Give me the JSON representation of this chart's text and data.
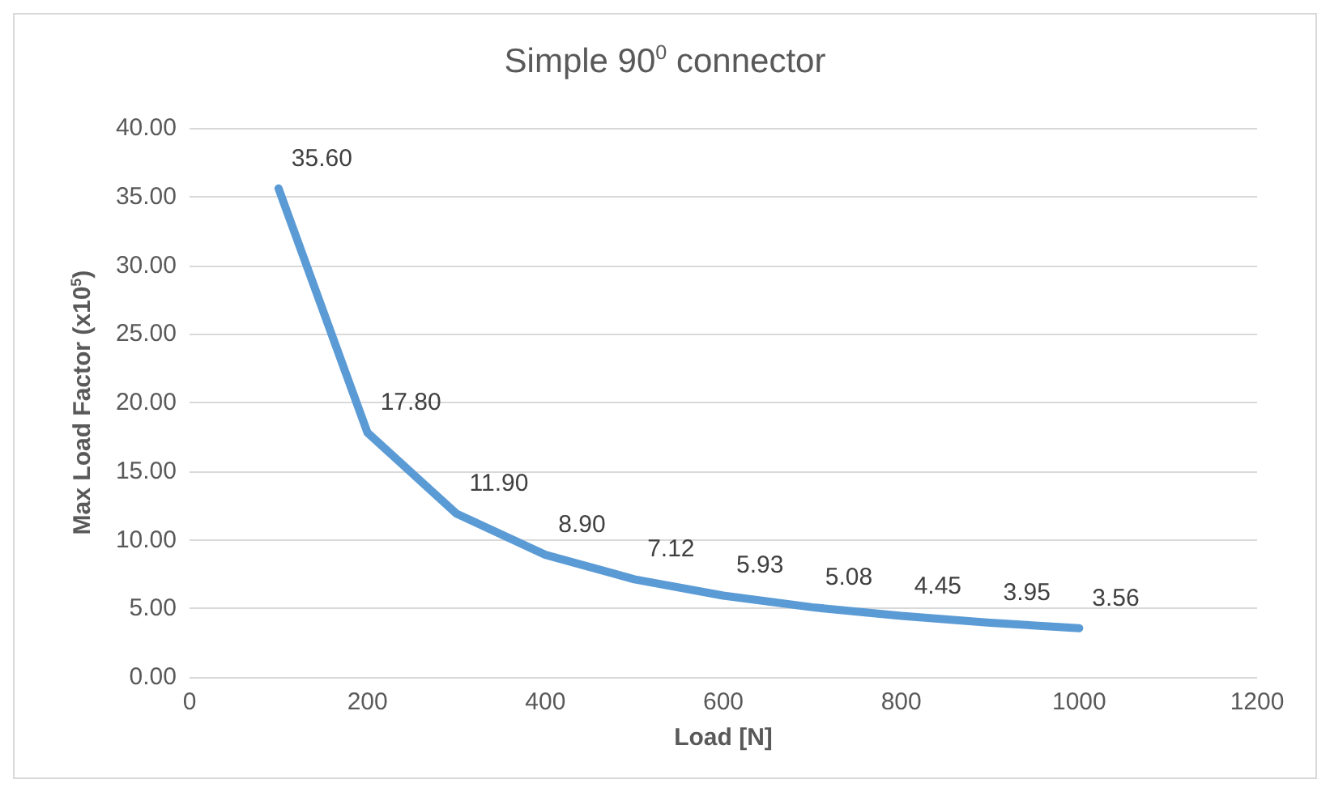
{
  "chart_data": {
    "type": "line",
    "title": "Simple 90$^{0}$ connector",
    "xlabel": "Load [N]",
    "ylabel": "Max Load Factor (x10$^{5}$)",
    "x": [
      100,
      200,
      300,
      400,
      500,
      600,
      700,
      800,
      900,
      1000
    ],
    "series": [
      {
        "color": "#5b9bd5",
        "values": [
          35.6,
          17.8,
          11.9,
          8.9,
          7.12,
          5.93,
          5.08,
          4.45,
          3.95,
          3.56
        ],
        "value_labels": [
          "35.60",
          "17.80",
          "11.90",
          "8.90",
          "7.12",
          "5.93",
          "5.08",
          "4.45",
          "3.95",
          "3.56"
        ]
      }
    ],
    "xlim": [
      0,
      1200
    ],
    "xticks": [
      0,
      200,
      400,
      600,
      800,
      1000,
      1200
    ],
    "ylim": [
      0,
      40
    ],
    "yticks": [
      {
        "value": 0,
        "label": "0.00"
      },
      {
        "value": 5,
        "label": "5.00"
      },
      {
        "value": 10,
        "label": "10.00"
      },
      {
        "value": 15,
        "label": "15.00"
      },
      {
        "value": 20,
        "label": "20.00"
      },
      {
        "value": 25,
        "label": "25.00"
      },
      {
        "value": 30,
        "label": "30.00"
      },
      {
        "value": 35,
        "label": "35.00"
      },
      {
        "value": 40,
        "label": "40.00"
      }
    ],
    "grid": "y",
    "marker": "none",
    "line_style": "solid"
  }
}
